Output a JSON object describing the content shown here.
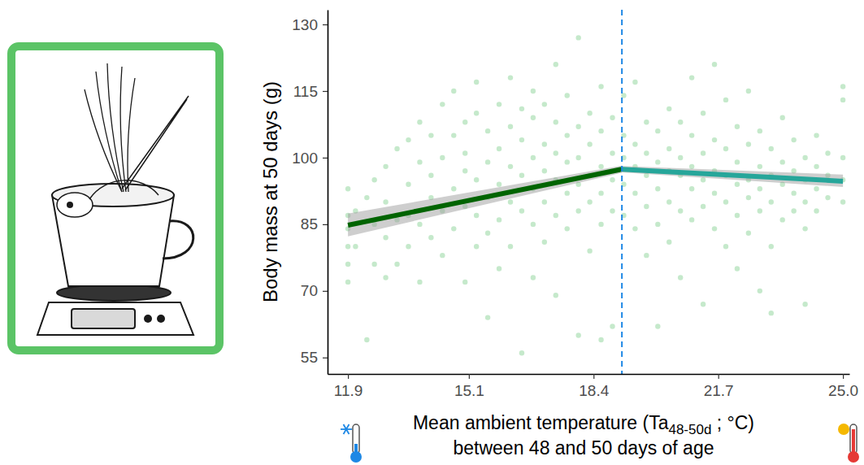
{
  "chart_data": {
    "type": "scatter",
    "y_label": "Body mass at 50 days (g)",
    "x_label": {
      "text": "Mean ambient temperature (Ta",
      "subscript": "48-50d",
      "after": " ; °C)",
      "line2": "between 48 and 50 days of age"
    },
    "xlim": [
      11.36,
      25.17
    ],
    "xticks": [
      11.9,
      15.1,
      18.4,
      21.7,
      {
        "value": 25,
        "label": "25.0"
      }
    ],
    "ylim": [
      51.3,
      133.3
    ],
    "yticks": [
      55,
      70,
      85,
      100,
      115,
      130
    ],
    "grid": false,
    "breakpoint": {
      "x": 19.15,
      "color": "#1e88e5",
      "line_style": "dashed"
    },
    "series": [
      {
        "type": "scatter",
        "marker": "circle",
        "color": "#4cbb5c",
        "x": [
          11.9,
          11.9,
          11.9,
          11.9,
          11.9,
          11.9,
          12.1,
          12.1,
          12.4,
          12.4,
          12.6,
          12.6,
          12.6,
          12.9,
          12.9,
          12.9,
          12.9,
          13.2,
          13.2,
          13.2,
          13.5,
          13.5,
          13.5,
          13.5,
          13.8,
          13.8,
          13.8,
          13.8,
          14.1,
          14.1,
          14.1,
          14.1,
          14.4,
          14.4,
          14.4,
          14.4,
          14.7,
          14.7,
          14.7,
          14.7,
          15.0,
          15.0,
          15.0,
          15.0,
          15.0,
          15.3,
          15.3,
          15.3,
          15.3,
          15.3,
          15.6,
          15.6,
          15.6,
          15.6,
          15.6,
          15.9,
          15.9,
          15.9,
          15.9,
          15.9,
          16.2,
          16.2,
          16.2,
          16.2,
          16.2,
          16.5,
          16.5,
          16.5,
          16.5,
          16.5,
          16.8,
          16.8,
          16.8,
          16.8,
          16.8,
          16.8,
          17.1,
          17.1,
          17.1,
          17.1,
          17.1,
          17.4,
          17.4,
          17.4,
          17.4,
          17.4,
          17.4,
          17.7,
          17.7,
          17.7,
          17.7,
          17.7,
          18.0,
          18.0,
          18.0,
          18.0,
          18.0,
          18.0,
          18.3,
          18.3,
          18.3,
          18.3,
          18.3,
          18.6,
          18.6,
          18.6,
          18.6,
          18.6,
          18.6,
          18.9,
          18.9,
          18.9,
          18.9,
          18.9,
          19.2,
          19.2,
          19.2,
          19.2,
          19.2,
          19.5,
          19.5,
          19.5,
          19.5,
          19.5,
          19.8,
          19.8,
          19.8,
          19.8,
          19.8,
          20.1,
          20.1,
          20.1,
          20.1,
          20.1,
          20.4,
          20.4,
          20.4,
          20.4,
          20.4,
          20.7,
          20.7,
          20.7,
          20.7,
          20.7,
          21.0,
          21.0,
          21.0,
          21.0,
          21.0,
          21.3,
          21.3,
          21.3,
          21.3,
          21.3,
          21.6,
          21.6,
          21.6,
          21.6,
          21.6,
          21.9,
          21.9,
          21.9,
          21.9,
          21.9,
          22.2,
          22.2,
          22.2,
          22.2,
          22.2,
          22.5,
          22.5,
          22.5,
          22.5,
          22.5,
          22.8,
          22.8,
          22.8,
          22.8,
          22.8,
          23.1,
          23.1,
          23.1,
          23.1,
          23.1,
          23.4,
          23.4,
          23.4,
          23.4,
          23.7,
          23.7,
          23.7,
          23.7,
          24.0,
          24.0,
          24.0,
          24.0,
          24.0,
          24.3,
          24.3,
          24.3,
          24.3,
          24.6,
          24.6,
          24.6,
          25.0,
          25.0,
          25.0,
          25.0,
          25.0
        ],
        "values": [
          72,
          76,
          80,
          84,
          87,
          93,
          88,
          80,
          59,
          91,
          76,
          85,
          95,
          73,
          82,
          98,
          90,
          86,
          76,
          102,
          94,
          80,
          104,
          87,
          99,
          85,
          72,
          108,
          91,
          82,
          105,
          96,
          88,
          100,
          112,
          78,
          93,
          84,
          105,
          115,
          97,
          72,
          89,
          108,
          101,
          95,
          87,
          110,
          80,
          117,
          99,
          91,
          83,
          106,
          64,
          102,
          94,
          86,
          112,
          75,
          98,
          90,
          107,
          80,
          118,
          96,
          104,
          88,
          56,
          111,
          100,
          93,
          85,
          109,
          73,
          115,
          97,
          103,
          90,
          81,
          112,
          101,
          95,
          87,
          108,
          121,
          69,
          99,
          92,
          105,
          84,
          114,
          127,
          100,
          94,
          88,
          107,
          60,
          103,
          96,
          90,
          110,
          79,
          98,
          92,
          106,
          85,
          116,
          59,
          101,
          95,
          88,
          109,
          62,
          100,
          94,
          105,
          87,
          114,
          98,
          92,
          103,
          84,
          117,
          101,
          96,
          89,
          108,
          78,
          99,
          93,
          106,
          85,
          62,
          97,
          102,
          90,
          111,
          81,
          96,
          100,
          88,
          108,
          73,
          98,
          93,
          105,
          86,
          118,
          95,
          101,
          89,
          110,
          67,
          97,
          92,
          104,
          84,
          121,
          96,
          90,
          102,
          80,
          113,
          94,
          99,
          87,
          107,
          75,
          95,
          91,
          103,
          83,
          115,
          93,
          98,
          88,
          106,
          70,
          96,
          90,
          102,
          80,
          65,
          94,
          99,
          86,
          109,
          92,
          97,
          88,
          104,
          95,
          90,
          100,
          84,
          67,
          93,
          98,
          88,
          105,
          96,
          91,
          101,
          95,
          100,
          90,
          113,
          116
        ]
      },
      {
        "type": "line",
        "line_style": "solid",
        "color": "#006400",
        "x": [
          11.9,
          19.15
        ],
        "values": [
          84.8,
          97.4
        ],
        "lower": [
          82.3,
          96.6
        ],
        "upper": [
          87.4,
          98.2
        ]
      },
      {
        "type": "line",
        "line_style": "solid",
        "color": "#26a69a",
        "x": [
          19.15,
          25.0
        ],
        "values": [
          97.4,
          94.7
        ],
        "lower": [
          96.7,
          93.4
        ],
        "upper": [
          98.1,
          96.2
        ]
      }
    ]
  }
}
